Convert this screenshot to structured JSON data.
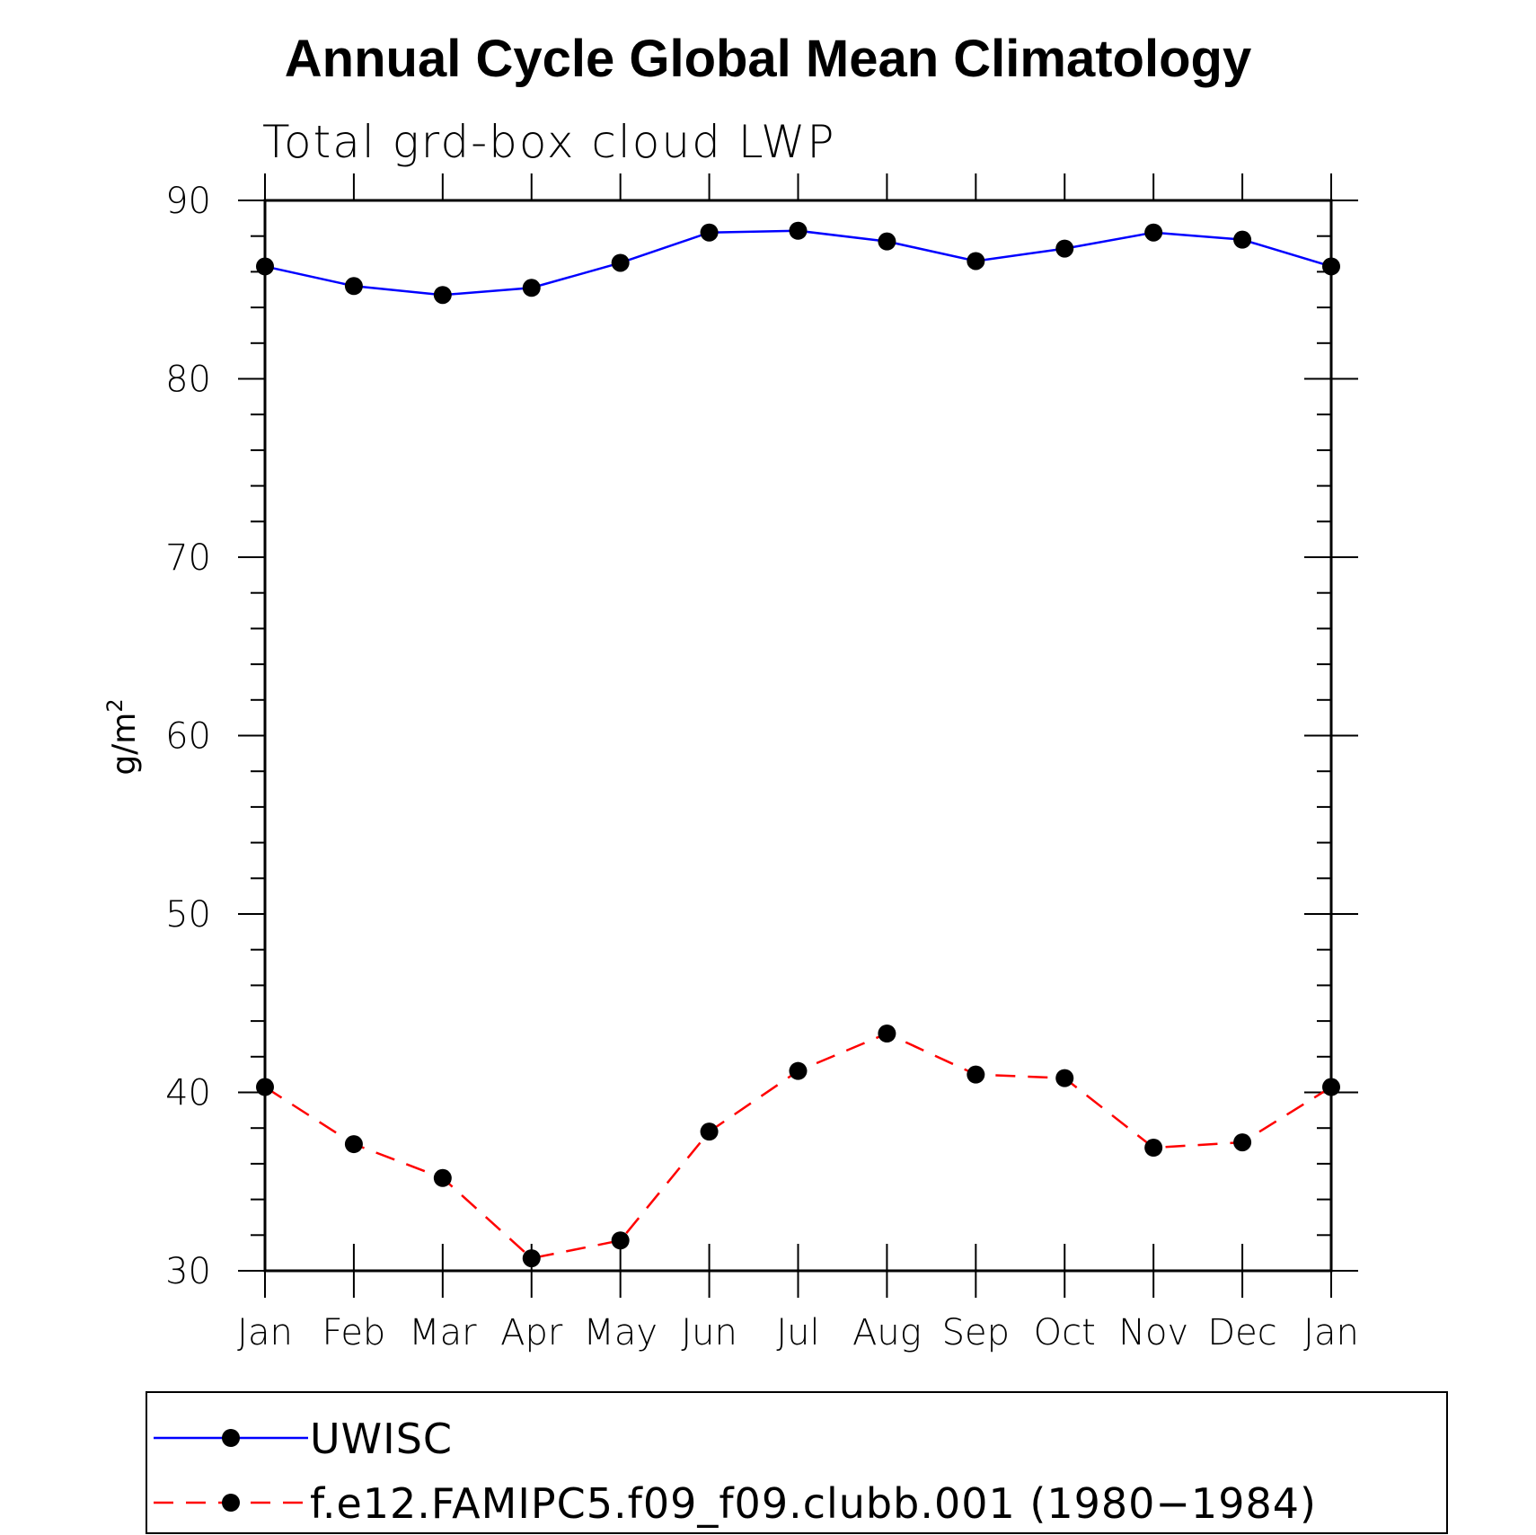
{
  "chart_data": {
    "type": "line",
    "title": "Annual Cycle Global Mean Climatology",
    "subtitle": "Total grd-box cloud LWP",
    "xlabel": "",
    "ylabel": "g/m",
    "ylabel_superscript": "2",
    "ylim": [
      30,
      90
    ],
    "yticks": [
      "30",
      "40",
      "50",
      "60",
      "70",
      "80",
      "90"
    ],
    "ytick_values": [
      30,
      40,
      50,
      60,
      70,
      80,
      90
    ],
    "categories": [
      "Jan",
      "Feb",
      "Mar",
      "Apr",
      "May",
      "Jun",
      "Jul",
      "Aug",
      "Sep",
      "Oct",
      "Nov",
      "Dec",
      "Jan"
    ],
    "series": [
      {
        "name": "UWISC",
        "color": "#0000ff",
        "dash": "solid",
        "values": [
          86.3,
          85.2,
          84.7,
          85.1,
          86.5,
          88.2,
          88.3,
          87.7,
          86.6,
          87.3,
          88.2,
          87.8,
          86.3
        ]
      },
      {
        "name": "f.e12.FAMIPC5.f09_f09.clubb.001 (1980−1984)",
        "color": "#ff0000",
        "dash": "dashed",
        "values": [
          40.3,
          37.1,
          35.2,
          30.7,
          31.7,
          37.8,
          41.2,
          43.3,
          41.0,
          40.8,
          36.9,
          37.2,
          40.3
        ]
      }
    ],
    "legend_position": "bottom"
  }
}
